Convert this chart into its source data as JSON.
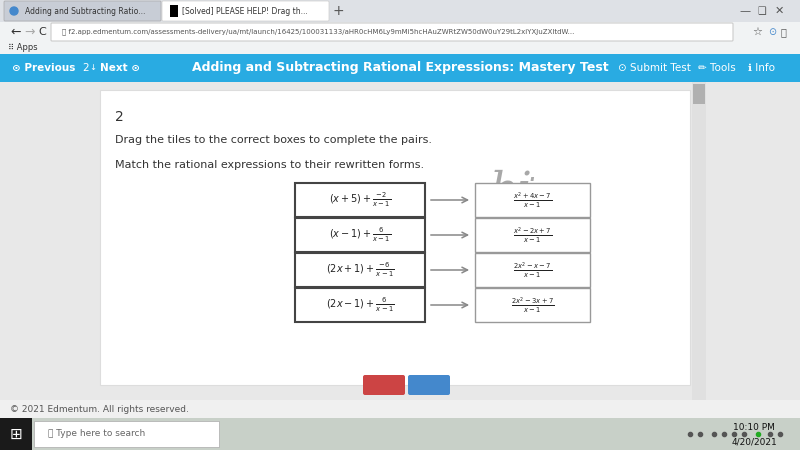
{
  "bg_color": "#f0f0f0",
  "content_bg": "#ffffff",
  "header_bg": "#29abe2",
  "header_text": "Adding and Subtracting Rational Expressions: Mastery Test",
  "question_number": "2",
  "instruction1": "Drag the tiles to the correct boxes to complete the pairs.",
  "instruction2": "Match the rational expressions to their rewritten forms.",
  "left_expressions": [
    "(x + 5) + \\frac{-2}{x-1}",
    "(x - 1) + \\frac{6}{x-1}",
    "(2x + 1) + \\frac{-6}{x-1}",
    "(2x - 1) + \\frac{6}{x-1}"
  ],
  "right_expressions": [
    "\\frac{x^2 + 4x - 7}{x-1}",
    "\\frac{x^2 - 2x + 7}{x-1}",
    "\\frac{2x^2 - x - 7}{x-1}",
    "\\frac{2x^2 - 3x + 7}{x-1}"
  ],
  "arrow_color": "#888888",
  "footer_text": "© 2021 Edmentum. All rights reserved.",
  "tab1_text": "Adding and Subtracting Ratio...",
  "tab2_text": "[Solved] PLEASE HELP! Drag th...",
  "url_text": "f2.app.edmentum.com/assessments-delivery/ua/mt/launch/16425/100031133/aHR0cHM6Ly9mMi5hcHAuZWRtZW50dW0uY29tL2xiYXJuZXItdW...",
  "taskbar_bg": "#c8d0c8",
  "taskbar_time": "10:10 PM",
  "taskbar_date": "4/20/2021",
  "red_btn_color": "#cc4444",
  "blue_btn_color": "#4488cc"
}
